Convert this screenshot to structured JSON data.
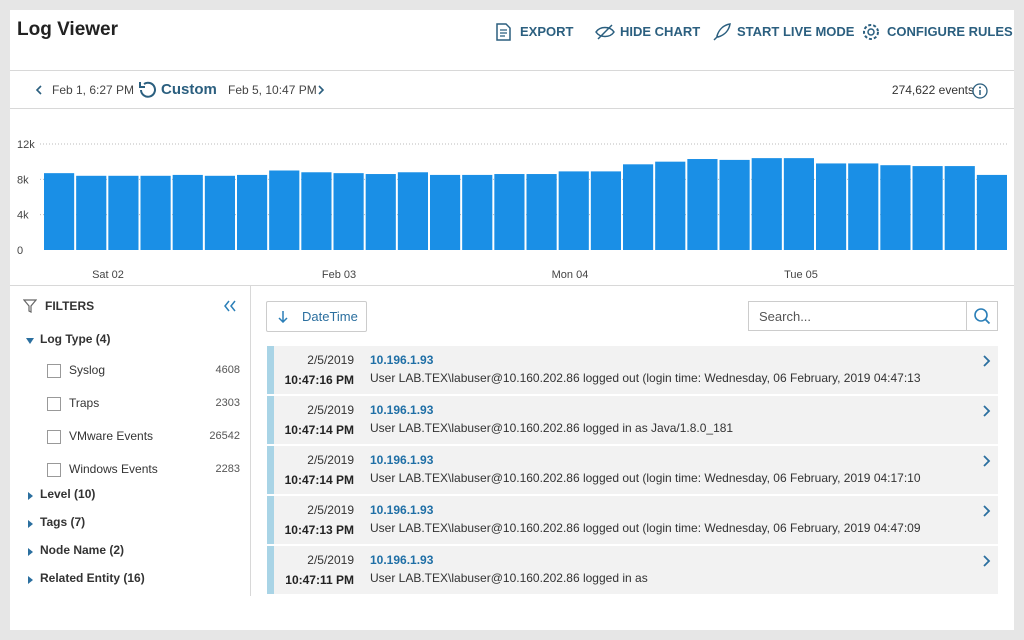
{
  "header": {
    "title": "Log Viewer",
    "actions": [
      "EXPORT",
      "HIDE CHART",
      "START LIVE MODE",
      "CONFIGURE RULES"
    ]
  },
  "time_range": {
    "start": "Feb 1, 6:27 PM",
    "preset": "Custom",
    "end": "Feb 5, 10:47 PM",
    "event_count": "274,622",
    "event_unit": "events"
  },
  "chart_data": {
    "type": "bar",
    "color": "#1a8fe6",
    "grid": true,
    "categories": [
      null,
      null,
      null,
      null,
      null,
      null,
      null,
      null,
      null,
      null,
      null,
      null,
      null,
      null,
      null,
      null,
      null,
      null,
      null,
      null,
      null,
      null,
      null,
      null,
      null,
      null,
      null,
      null,
      null,
      null
    ],
    "values": [
      8700,
      8400,
      8400,
      8400,
      8500,
      8400,
      8500,
      9000,
      8800,
      8700,
      8600,
      8800,
      8500,
      8500,
      8600,
      8600,
      8900,
      8900,
      9700,
      10000,
      10300,
      10200,
      10400,
      10400,
      9800,
      9800,
      9600,
      9500,
      9500,
      8500
    ],
    "x_labels": [
      "Sat 02",
      "Feb 03",
      "Mon 04",
      "Tue 05"
    ],
    "ylim": [
      0,
      12000
    ],
    "yticks": [
      0,
      {
        "value": 4000,
        "label": "4k"
      },
      {
        "value": 8000,
        "label": "8k"
      },
      {
        "value": 12000,
        "label": "12k"
      }
    ]
  },
  "filters": {
    "title": "FILTERS",
    "groups": [
      {
        "label": "Log Type (4)",
        "options": [
          {
            "label": "Syslog",
            "count": 4608
          },
          {
            "label": "Traps",
            "count": 2303
          },
          {
            "label": "VMware Events",
            "count": 26542
          },
          {
            "label": "Windows Events",
            "count": 2283
          }
        ]
      },
      {
        "label": "Level (10)"
      },
      {
        "label": "Tags (7)"
      },
      {
        "label": "Node Name (2)"
      },
      {
        "label": "Related Entity (16)"
      }
    ]
  },
  "log_list": {
    "sort": "DateTime",
    "search_placeholder": "Search...",
    "rows": [
      {
        "date": "2/5/2019",
        "time": "10:47:16 PM",
        "source": "10.196.1.93",
        "message": "User LAB.TEX\\labuser@10.160.202.86 logged out (login time: Wednesday, 06 February, 2019 04:47:13"
      },
      {
        "date": "2/5/2019",
        "time": "10:47:14 PM",
        "source": "10.196.1.93",
        "message": "User LAB.TEX\\labuser@10.160.202.86 logged in as Java/1.8.0_181"
      },
      {
        "date": "2/5/2019",
        "time": "10:47:14 PM",
        "source": "10.196.1.93",
        "message": "User LAB.TEX\\labuser@10.160.202.86 logged out (login time: Wednesday, 06 February, 2019 04:17:10"
      },
      {
        "date": "2/5/2019",
        "time": "10:47:13 PM",
        "source": "10.196.1.93",
        "message": "User LAB.TEX\\labuser@10.160.202.86 logged out (login time: Wednesday, 06 February, 2019 04:47:09"
      },
      {
        "date": "2/5/2019",
        "time": "10:47:11 PM",
        "source": "10.196.1.93",
        "message": "User LAB.TEX\\labuser@10.160.202.86 logged in as"
      }
    ]
  }
}
